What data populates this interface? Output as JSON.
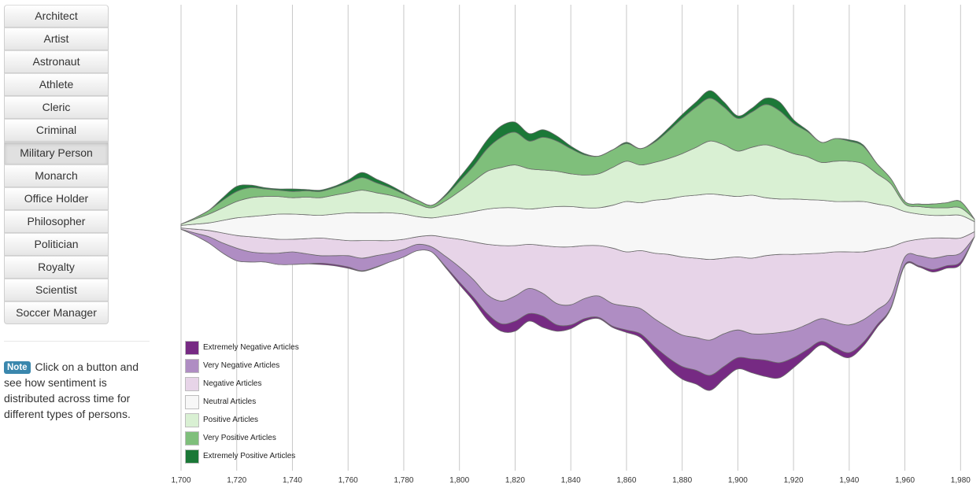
{
  "sidebar": {
    "buttons": [
      "Architect",
      "Artist",
      "Astronaut",
      "Athlete",
      "Cleric",
      "Criminal",
      "Military Person",
      "Monarch",
      "Office Holder",
      "Philosopher",
      "Politician",
      "Royalty",
      "Scientist",
      "Soccer Manager"
    ],
    "active": "Military Person"
  },
  "note": {
    "badge": "Note",
    "text": "Click on a button and see how sentiment is distributed across time for different types of persons."
  },
  "chart_data": {
    "type": "area",
    "xlim": [
      1700,
      1985
    ],
    "x_ticks": [
      "1,700",
      "1,720",
      "1,740",
      "1,760",
      "1,780",
      "1,800",
      "1,820",
      "1,840",
      "1,860",
      "1,880",
      "1,900",
      "1,920",
      "1,940",
      "1,960",
      "1,980"
    ],
    "x_tick_values": [
      1700,
      1720,
      1740,
      1760,
      1780,
      1800,
      1820,
      1840,
      1860,
      1880,
      1900,
      1920,
      1940,
      1960,
      1980
    ],
    "grid": true,
    "legend_position": "bottom-left",
    "x": [
      1700,
      1705,
      1710,
      1715,
      1720,
      1725,
      1730,
      1735,
      1740,
      1745,
      1750,
      1755,
      1760,
      1765,
      1770,
      1775,
      1780,
      1785,
      1790,
      1795,
      1800,
      1805,
      1810,
      1815,
      1820,
      1825,
      1830,
      1835,
      1840,
      1845,
      1850,
      1855,
      1860,
      1865,
      1870,
      1875,
      1880,
      1885,
      1890,
      1895,
      1900,
      1905,
      1910,
      1915,
      1920,
      1925,
      1930,
      1935,
      1940,
      1945,
      1950,
      1955,
      1960,
      1965,
      1970,
      1975,
      1980,
      1985
    ],
    "series": [
      {
        "name": "Extremely Negative Articles",
        "color": "#762a83",
        "values": [
          0,
          0,
          0,
          0,
          0,
          0,
          0,
          0,
          0,
          0,
          1,
          1,
          1,
          0.5,
          0.5,
          0,
          0,
          0,
          0,
          1,
          2,
          3,
          5,
          6,
          8,
          6,
          9,
          5,
          3,
          2,
          1,
          1,
          2,
          3,
          5,
          8,
          10,
          11,
          12,
          10,
          9,
          11,
          13,
          12,
          8,
          5,
          3,
          4,
          4,
          3,
          2,
          1,
          1,
          1,
          2,
          2,
          2,
          0
        ]
      },
      {
        "name": "Very Negative Articles",
        "color": "#af8dc3",
        "values": [
          0,
          2,
          5,
          8,
          10,
          8,
          7,
          9,
          10,
          8,
          6,
          7,
          9,
          10,
          9,
          7,
          6,
          5,
          4,
          8,
          12,
          14,
          15,
          18,
          20,
          20,
          18,
          17,
          16,
          16,
          17,
          18,
          19,
          20,
          22,
          24,
          25,
          26,
          28,
          26,
          22,
          20,
          21,
          24,
          22,
          20,
          18,
          20,
          22,
          18,
          12,
          8,
          6,
          8,
          9,
          8,
          7,
          0
        ]
      },
      {
        "name": "Negative Articles",
        "color": "#e7d4e8",
        "values": [
          1,
          3,
          5,
          8,
          10,
          12,
          12,
          11,
          10,
          12,
          14,
          13,
          12,
          14,
          12,
          10,
          8,
          6,
          9,
          15,
          22,
          30,
          40,
          44,
          40,
          35,
          38,
          45,
          46,
          42,
          40,
          44,
          43,
          46,
          52,
          58,
          62,
          63,
          64,
          60,
          58,
          60,
          62,
          62,
          60,
          56,
          52,
          56,
          58,
          54,
          48,
          40,
          12,
          13,
          16,
          14,
          12,
          4
        ]
      },
      {
        "name": "Neutral Articles",
        "color": "#f7f7f7",
        "values": [
          2,
          4,
          6,
          10,
          14,
          16,
          18,
          20,
          20,
          19,
          18,
          20,
          22,
          22,
          22,
          22,
          20,
          16,
          14,
          17,
          20,
          24,
          28,
          30,
          30,
          28,
          30,
          32,
          32,
          30,
          30,
          34,
          40,
          38,
          42,
          44,
          48,
          50,
          52,
          50,
          48,
          50,
          46,
          44,
          44,
          43,
          42,
          40,
          40,
          40,
          36,
          32,
          24,
          20,
          18,
          18,
          18,
          8
        ]
      },
      {
        "name": "Positive Articles",
        "color": "#d9f0d3",
        "values": [
          1,
          4,
          7,
          10,
          13,
          15,
          15,
          14,
          13,
          14,
          14,
          15,
          16,
          18,
          16,
          14,
          12,
          10,
          8,
          12,
          18,
          24,
          30,
          32,
          34,
          32,
          30,
          28,
          26,
          26,
          27,
          30,
          32,
          30,
          30,
          32,
          34,
          38,
          42,
          40,
          36,
          38,
          42,
          40,
          36,
          34,
          30,
          32,
          32,
          30,
          24,
          18,
          6,
          6,
          6,
          6,
          6,
          2
        ]
      },
      {
        "name": "Very Positive Articles",
        "color": "#7fbf7b",
        "values": [
          0,
          1,
          3,
          6,
          8,
          8,
          6,
          5,
          5,
          5,
          5,
          6,
          8,
          10,
          8,
          6,
          4,
          3,
          2,
          4,
          8,
          12,
          18,
          24,
          26,
          22,
          26,
          24,
          20,
          16,
          14,
          14,
          14,
          13,
          16,
          22,
          28,
          32,
          34,
          30,
          26,
          28,
          32,
          30,
          24,
          20,
          16,
          18,
          16,
          14,
          8,
          4,
          2,
          2,
          3,
          4,
          5,
          0
        ]
      },
      {
        "name": "Extremely Positive Articles",
        "color": "#1b7837",
        "values": [
          0,
          0,
          0,
          2,
          4,
          2,
          1,
          1,
          2,
          1,
          1,
          1,
          2,
          4,
          3,
          2,
          1,
          0,
          0,
          1,
          3,
          5,
          7,
          9,
          8,
          6,
          6,
          4,
          2,
          1,
          0,
          0,
          1,
          0,
          1,
          2,
          3,
          4,
          6,
          4,
          2,
          3,
          5,
          7,
          3,
          1,
          0,
          0,
          1,
          1,
          0,
          0,
          0,
          0,
          0,
          0,
          0,
          0
        ]
      }
    ]
  }
}
